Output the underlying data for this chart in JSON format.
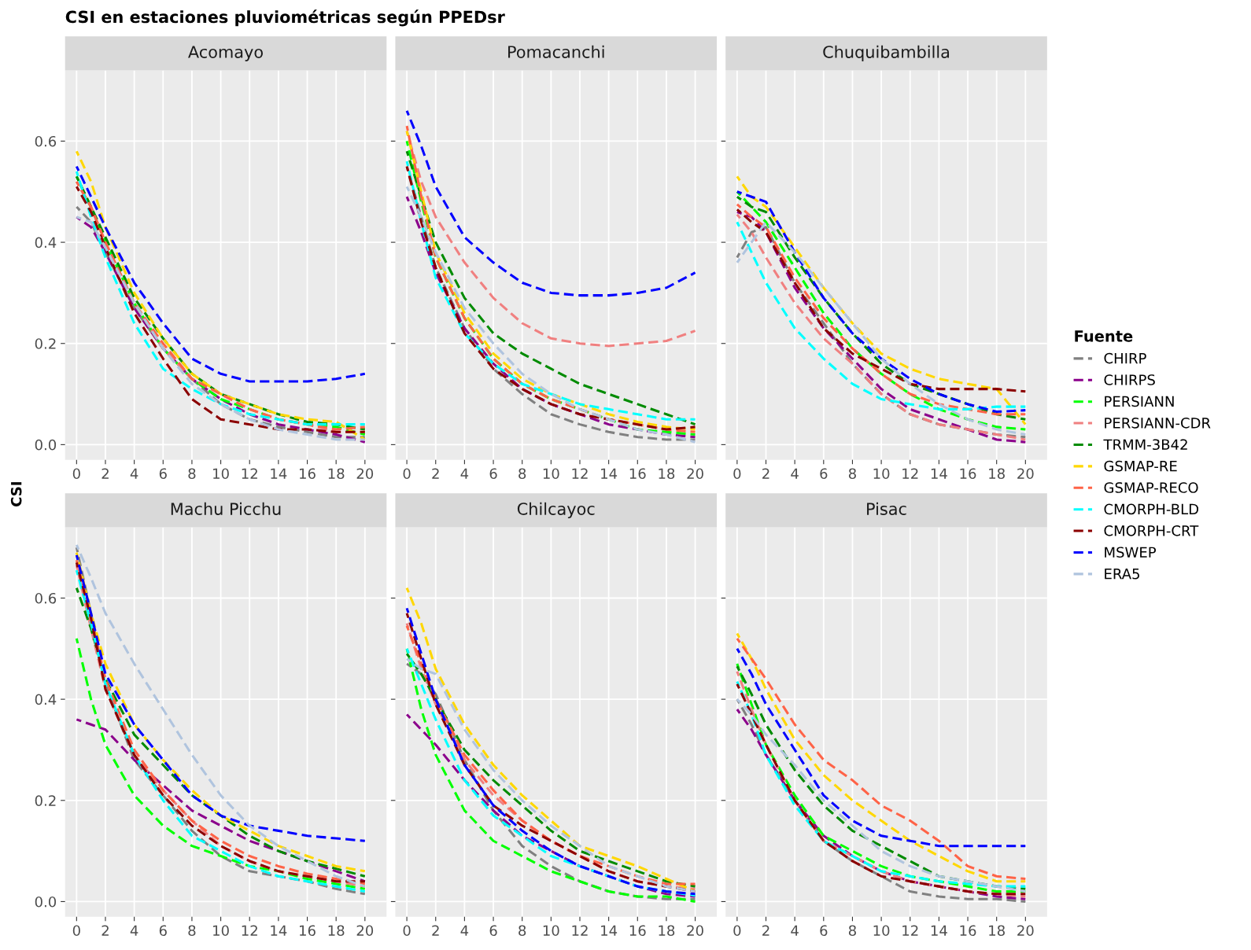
{
  "chart_data": [
    {
      "type": "line",
      "title": "CSI en estaciones pluviométricas según PPEDsr",
      "subtitle": "Acomayo",
      "ylabel": "CSI",
      "legend_title": "Fuente",
      "legend": "right",
      "grid": true,
      "line_style": "dashed",
      "x": [
        0,
        1,
        2,
        4,
        6,
        8,
        10,
        12,
        14,
        16,
        18,
        20
      ],
      "xlim": [
        -0.8,
        21.5
      ],
      "ylim": [
        -0.03,
        0.74
      ],
      "xticks": [
        0,
        2,
        4,
        6,
        8,
        10,
        12,
        14,
        16,
        18,
        20
      ],
      "yticks": [
        {
          "value": 0,
          "label": "0.0"
        },
        {
          "value": 0.2,
          "label": "0.2"
        },
        {
          "value": 0.4,
          "label": "0.4"
        },
        {
          "value": 0.6,
          "label": "0.6"
        }
      ],
      "series": [
        {
          "name": "CHIRP",
          "color": "#808080",
          "values": [
            0.47,
            0.44,
            0.38,
            0.27,
            0.19,
            0.13,
            0.08,
            0.05,
            0.035,
            0.025,
            0.015,
            0.015
          ]
        },
        {
          "name": "CHIRPS",
          "color": "#8b008b",
          "values": [
            0.45,
            0.43,
            0.38,
            0.27,
            0.19,
            0.13,
            0.09,
            0.06,
            0.04,
            0.03,
            0.02,
            0.005
          ]
        },
        {
          "name": "PERSIANN",
          "color": "#00ff00",
          "values": [
            0.53,
            0.47,
            0.4,
            0.28,
            0.19,
            0.13,
            0.09,
            0.07,
            0.05,
            0.04,
            0.035,
            0.02
          ]
        },
        {
          "name": "PERSIANN-CDR",
          "color": "#f08080",
          "values": [
            0.52,
            0.47,
            0.4,
            0.28,
            0.19,
            0.13,
            0.1,
            0.07,
            0.05,
            0.04,
            0.025,
            0.025
          ]
        },
        {
          "name": "TRMM-3B42",
          "color": "#008b00",
          "values": [
            0.53,
            0.47,
            0.41,
            0.29,
            0.21,
            0.14,
            0.1,
            0.08,
            0.06,
            0.045,
            0.04,
            0.03
          ]
        },
        {
          "name": "GSMAP-RE",
          "color": "#ffd700",
          "values": [
            0.58,
            0.52,
            0.43,
            0.3,
            0.21,
            0.14,
            0.1,
            0.08,
            0.06,
            0.05,
            0.045,
            0.01
          ]
        },
        {
          "name": "GSMAP-RECO",
          "color": "#ff6347",
          "values": [
            0.52,
            0.47,
            0.4,
            0.28,
            0.2,
            0.13,
            0.1,
            0.07,
            0.05,
            0.04,
            0.03,
            0.035
          ]
        },
        {
          "name": "CMORPH-BLD",
          "color": "#00ffff",
          "values": [
            0.54,
            0.45,
            0.37,
            0.24,
            0.15,
            0.11,
            0.08,
            0.06,
            0.05,
            0.04,
            0.04,
            0.04
          ]
        },
        {
          "name": "CMORPH-CRT",
          "color": "#8b0000",
          "values": [
            0.51,
            0.46,
            0.39,
            0.26,
            0.17,
            0.09,
            0.05,
            0.04,
            0.03,
            0.03,
            0.025,
            0.025
          ]
        },
        {
          "name": "MSWEP",
          "color": "#0000ff",
          "values": [
            0.55,
            0.49,
            0.43,
            0.32,
            0.24,
            0.17,
            0.14,
            0.125,
            0.125,
            0.125,
            0.13,
            0.14
          ]
        },
        {
          "name": "ERA5",
          "color": "#b0c4de",
          "values": [
            0.45,
            0.44,
            0.39,
            0.28,
            0.19,
            0.12,
            0.08,
            0.05,
            0.03,
            0.02,
            0.01,
            0.01
          ]
        }
      ]
    },
    {
      "type": "line",
      "subtitle": "Pomacanchi",
      "grid": true,
      "line_style": "dashed",
      "tick_labels": "x",
      "x": [
        0,
        1,
        2,
        4,
        6,
        8,
        10,
        12,
        14,
        16,
        18,
        20
      ],
      "xlim": [
        -0.8,
        21.5
      ],
      "ylim": [
        -0.03,
        0.74
      ],
      "xticks": [
        0,
        2,
        4,
        6,
        8,
        10,
        12,
        14,
        16,
        18,
        20
      ],
      "yticks": [
        {
          "value": 0,
          "label": null
        },
        {
          "value": 0.2,
          "label": null
        },
        {
          "value": 0.4,
          "label": null
        },
        {
          "value": 0.6,
          "label": null
        }
      ],
      "series": [
        {
          "color": "#808080",
          "values": [
            0.55,
            0.45,
            0.35,
            0.23,
            0.15,
            0.1,
            0.06,
            0.04,
            0.025,
            0.015,
            0.01,
            0.01
          ]
        },
        {
          "color": "#8b008b",
          "values": [
            0.49,
            0.42,
            0.34,
            0.23,
            0.16,
            0.11,
            0.08,
            0.06,
            0.04,
            0.03,
            0.02,
            0.015
          ]
        },
        {
          "color": "#00ff00",
          "values": [
            0.6,
            0.48,
            0.37,
            0.25,
            0.17,
            0.12,
            0.09,
            0.07,
            0.05,
            0.03,
            0.025,
            0.02
          ]
        },
        {
          "color": "#f08080",
          "values": [
            0.62,
            0.52,
            0.45,
            0.36,
            0.29,
            0.24,
            0.21,
            0.2,
            0.195,
            0.2,
            0.205,
            0.225
          ]
        },
        {
          "color": "#008b00",
          "values": [
            0.58,
            0.49,
            0.4,
            0.29,
            0.22,
            0.18,
            0.15,
            0.12,
            0.1,
            0.08,
            0.06,
            0.04
          ]
        },
        {
          "color": "#ffd700",
          "values": [
            0.62,
            0.5,
            0.38,
            0.26,
            0.18,
            0.13,
            0.1,
            0.08,
            0.06,
            0.045,
            0.035,
            0.03
          ]
        },
        {
          "color": "#ff6347",
          "values": [
            0.63,
            0.49,
            0.37,
            0.25,
            0.17,
            0.12,
            0.09,
            0.07,
            0.05,
            0.04,
            0.03,
            0.025
          ]
        },
        {
          "color": "#00ffff",
          "values": [
            0.56,
            0.44,
            0.33,
            0.22,
            0.16,
            0.12,
            0.1,
            0.08,
            0.07,
            0.06,
            0.05,
            0.05
          ]
        },
        {
          "color": "#8b0000",
          "values": [
            0.55,
            0.44,
            0.35,
            0.22,
            0.15,
            0.11,
            0.08,
            0.06,
            0.05,
            0.04,
            0.03,
            0.035
          ]
        },
        {
          "color": "#0000ff",
          "values": [
            0.66,
            0.59,
            0.51,
            0.41,
            0.36,
            0.32,
            0.3,
            0.295,
            0.295,
            0.3,
            0.31,
            0.34
          ]
        },
        {
          "color": "#b0c4de",
          "values": [
            0.51,
            0.45,
            0.38,
            0.27,
            0.2,
            0.14,
            0.1,
            0.07,
            0.05,
            0.03,
            0.02,
            0.005
          ]
        }
      ]
    },
    {
      "type": "line",
      "subtitle": "Chuquibambilla",
      "grid": true,
      "line_style": "dashed",
      "tick_labels": "x",
      "x": [
        0,
        1,
        2,
        4,
        6,
        8,
        10,
        12,
        14,
        16,
        18,
        20
      ],
      "xlim": [
        -0.8,
        21.5
      ],
      "ylim": [
        -0.03,
        0.74
      ],
      "xticks": [
        0,
        2,
        4,
        6,
        8,
        10,
        12,
        14,
        16,
        18,
        20
      ],
      "yticks": [
        {
          "value": 0,
          "label": null
        },
        {
          "value": 0.2,
          "label": null
        },
        {
          "value": 0.4,
          "label": null
        },
        {
          "value": 0.6,
          "label": null
        }
      ],
      "series": [
        {
          "color": "#808080",
          "values": [
            0.37,
            0.42,
            0.43,
            0.32,
            0.24,
            0.16,
            0.1,
            0.06,
            0.04,
            0.03,
            0.02,
            0.015
          ]
        },
        {
          "color": "#8b008b",
          "values": [
            0.46,
            0.45,
            0.42,
            0.31,
            0.23,
            0.17,
            0.11,
            0.07,
            0.05,
            0.03,
            0.01,
            0.005
          ]
        },
        {
          "color": "#00ff00",
          "values": [
            0.5,
            0.47,
            0.44,
            0.35,
            0.26,
            0.19,
            0.14,
            0.1,
            0.07,
            0.05,
            0.035,
            0.03
          ]
        },
        {
          "color": "#f08080",
          "values": [
            0.455,
            0.42,
            0.37,
            0.28,
            0.21,
            0.16,
            0.1,
            0.06,
            0.04,
            0.03,
            0.02,
            0.01
          ]
        },
        {
          "color": "#008b00",
          "values": [
            0.49,
            0.47,
            0.46,
            0.37,
            0.29,
            0.22,
            0.16,
            0.12,
            0.1,
            0.08,
            0.06,
            0.05
          ]
        },
        {
          "color": "#ffd700",
          "values": [
            0.53,
            0.49,
            0.47,
            0.39,
            0.31,
            0.24,
            0.18,
            0.15,
            0.13,
            0.12,
            0.11,
            0.04
          ]
        },
        {
          "color": "#ff6347",
          "values": [
            0.475,
            0.45,
            0.43,
            0.33,
            0.25,
            0.19,
            0.14,
            0.1,
            0.08,
            0.07,
            0.06,
            0.06
          ]
        },
        {
          "color": "#00ffff",
          "values": [
            0.44,
            0.38,
            0.32,
            0.23,
            0.17,
            0.12,
            0.09,
            0.08,
            0.07,
            0.07,
            0.075,
            0.075
          ]
        },
        {
          "color": "#8b0000",
          "values": [
            0.465,
            0.44,
            0.42,
            0.32,
            0.23,
            0.18,
            0.15,
            0.12,
            0.11,
            0.11,
            0.11,
            0.105
          ]
        },
        {
          "color": "#0000ff",
          "values": [
            0.5,
            0.49,
            0.48,
            0.38,
            0.29,
            0.22,
            0.17,
            0.13,
            0.1,
            0.08,
            0.065,
            0.068
          ]
        },
        {
          "color": "#b0c4de",
          "values": [
            0.36,
            0.4,
            0.44,
            0.38,
            0.31,
            0.24,
            0.17,
            0.12,
            0.08,
            0.05,
            0.03,
            0.02
          ]
        }
      ]
    },
    {
      "type": "line",
      "subtitle": "Machu Picchu",
      "grid": true,
      "line_style": "dashed",
      "x": [
        0,
        1,
        2,
        4,
        6,
        8,
        10,
        12,
        14,
        16,
        18,
        20
      ],
      "xlim": [
        -0.8,
        21.5
      ],
      "ylim": [
        -0.03,
        0.74
      ],
      "xticks": [
        0,
        2,
        4,
        6,
        8,
        10,
        12,
        14,
        16,
        18,
        20
      ],
      "yticks": [
        {
          "value": 0,
          "label": "0.0"
        },
        {
          "value": 0.2,
          "label": "0.2"
        },
        {
          "value": 0.4,
          "label": "0.4"
        },
        {
          "value": 0.6,
          "label": "0.6"
        }
      ],
      "series": [
        {
          "color": "#808080",
          "values": [
            0.7,
            0.57,
            0.43,
            0.28,
            0.21,
            0.14,
            0.09,
            0.06,
            0.05,
            0.04,
            0.025,
            0.015
          ]
        },
        {
          "color": "#8b008b",
          "values": [
            0.36,
            0.35,
            0.34,
            0.28,
            0.23,
            0.18,
            0.15,
            0.12,
            0.1,
            0.08,
            0.06,
            0.04
          ]
        },
        {
          "color": "#00ff00",
          "values": [
            0.52,
            0.4,
            0.31,
            0.21,
            0.15,
            0.11,
            0.09,
            0.07,
            0.06,
            0.045,
            0.035,
            0.025
          ]
        },
        {
          "color": "#f08080",
          "values": [
            0.665,
            0.54,
            0.42,
            0.29,
            0.22,
            0.16,
            0.11,
            0.08,
            0.06,
            0.05,
            0.04,
            0.03
          ]
        },
        {
          "color": "#008b00",
          "values": [
            0.62,
            0.54,
            0.44,
            0.33,
            0.27,
            0.21,
            0.17,
            0.13,
            0.1,
            0.08,
            0.065,
            0.05
          ]
        },
        {
          "color": "#ffd700",
          "values": [
            0.69,
            0.57,
            0.47,
            0.35,
            0.28,
            0.22,
            0.17,
            0.14,
            0.11,
            0.09,
            0.07,
            0.06
          ]
        },
        {
          "color": "#ff6347",
          "values": [
            0.675,
            0.56,
            0.44,
            0.3,
            0.22,
            0.16,
            0.12,
            0.09,
            0.07,
            0.055,
            0.045,
            0.035
          ]
        },
        {
          "color": "#00ffff",
          "values": [
            0.655,
            0.55,
            0.43,
            0.29,
            0.2,
            0.13,
            0.1,
            0.07,
            0.05,
            0.04,
            0.03,
            0.02
          ]
        },
        {
          "color": "#8b0000",
          "values": [
            0.67,
            0.56,
            0.42,
            0.29,
            0.21,
            0.15,
            0.11,
            0.08,
            0.06,
            0.05,
            0.04,
            0.04
          ]
        },
        {
          "color": "#0000ff",
          "values": [
            0.685,
            0.57,
            0.45,
            0.35,
            0.28,
            0.21,
            0.17,
            0.15,
            0.14,
            0.13,
            0.125,
            0.12
          ]
        },
        {
          "color": "#b0c4de",
          "values": [
            0.705,
            0.64,
            0.57,
            0.47,
            0.38,
            0.29,
            0.21,
            0.15,
            0.11,
            0.08,
            0.05,
            0.03
          ]
        }
      ]
    },
    {
      "type": "line",
      "subtitle": "Chilcayoc",
      "grid": true,
      "line_style": "dashed",
      "tick_labels": "x",
      "x": [
        0,
        1,
        2,
        4,
        6,
        8,
        10,
        12,
        14,
        16,
        18,
        20
      ],
      "xlim": [
        -0.8,
        21.5
      ],
      "ylim": [
        -0.03,
        0.74
      ],
      "xticks": [
        0,
        2,
        4,
        6,
        8,
        10,
        12,
        14,
        16,
        18,
        20
      ],
      "yticks": [
        {
          "value": 0,
          "label": null
        },
        {
          "value": 0.2,
          "label": null
        },
        {
          "value": 0.4,
          "label": null
        },
        {
          "value": 0.6,
          "label": null
        }
      ],
      "series": [
        {
          "color": "#808080",
          "values": [
            0.47,
            0.45,
            0.41,
            0.28,
            0.18,
            0.11,
            0.07,
            0.04,
            0.02,
            0.01,
            0.005,
            0.005
          ]
        },
        {
          "color": "#8b008b",
          "values": [
            0.37,
            0.34,
            0.31,
            0.24,
            0.18,
            0.13,
            0.1,
            0.07,
            0.05,
            0.03,
            0.015,
            0.01
          ]
        },
        {
          "color": "#00ff00",
          "values": [
            0.5,
            0.38,
            0.29,
            0.18,
            0.12,
            0.09,
            0.06,
            0.04,
            0.02,
            0.01,
            0.01,
            0.0
          ]
        },
        {
          "color": "#f08080",
          "values": [
            0.55,
            0.46,
            0.39,
            0.28,
            0.21,
            0.16,
            0.12,
            0.09,
            0.06,
            0.04,
            0.03,
            0.025
          ]
        },
        {
          "color": "#008b00",
          "values": [
            0.49,
            0.45,
            0.4,
            0.3,
            0.24,
            0.19,
            0.14,
            0.1,
            0.08,
            0.06,
            0.04,
            0.03
          ]
        },
        {
          "color": "#ffd700",
          "values": [
            0.62,
            0.55,
            0.46,
            0.35,
            0.27,
            0.21,
            0.16,
            0.11,
            0.09,
            0.07,
            0.045,
            0.02
          ]
        },
        {
          "color": "#ff6347",
          "values": [
            0.545,
            0.47,
            0.4,
            0.29,
            0.22,
            0.16,
            0.12,
            0.09,
            0.07,
            0.05,
            0.035,
            0.035
          ]
        },
        {
          "color": "#00ffff",
          "values": [
            0.5,
            0.43,
            0.36,
            0.24,
            0.17,
            0.13,
            0.09,
            0.07,
            0.05,
            0.03,
            0.02,
            0.012
          ]
        },
        {
          "color": "#8b0000",
          "values": [
            0.57,
            0.48,
            0.39,
            0.27,
            0.19,
            0.15,
            0.12,
            0.09,
            0.06,
            0.04,
            0.03,
            0.02
          ]
        },
        {
          "color": "#0000ff",
          "values": [
            0.58,
            0.49,
            0.4,
            0.27,
            0.19,
            0.14,
            0.1,
            0.07,
            0.05,
            0.03,
            0.02,
            0.015
          ]
        },
        {
          "color": "#b0c4de",
          "values": [
            0.48,
            0.46,
            0.45,
            0.34,
            0.26,
            0.2,
            0.15,
            0.11,
            0.07,
            0.05,
            0.03,
            0.02
          ]
        }
      ]
    },
    {
      "type": "line",
      "subtitle": "Pisac",
      "grid": true,
      "line_style": "dashed",
      "tick_labels": "x",
      "x": [
        0,
        1,
        2,
        4,
        6,
        8,
        10,
        12,
        14,
        16,
        18,
        20
      ],
      "xlim": [
        -0.8,
        21.5
      ],
      "ylim": [
        -0.03,
        0.74
      ],
      "xticks": [
        0,
        2,
        4,
        6,
        8,
        10,
        12,
        14,
        16,
        18,
        20
      ],
      "yticks": [
        {
          "value": 0,
          "label": null
        },
        {
          "value": 0.2,
          "label": null
        },
        {
          "value": 0.4,
          "label": null
        },
        {
          "value": 0.6,
          "label": null
        }
      ],
      "series": [
        {
          "color": "#808080",
          "values": [
            0.4,
            0.35,
            0.29,
            0.2,
            0.12,
            0.08,
            0.05,
            0.02,
            0.01,
            0.005,
            0.005,
            0.0
          ]
        },
        {
          "color": "#8b008b",
          "values": [
            0.38,
            0.34,
            0.29,
            0.2,
            0.13,
            0.09,
            0.06,
            0.04,
            0.03,
            0.02,
            0.01,
            0.005
          ]
        },
        {
          "color": "#00ff00",
          "values": [
            0.47,
            0.39,
            0.31,
            0.21,
            0.13,
            0.1,
            0.07,
            0.05,
            0.04,
            0.03,
            0.02,
            0.02
          ]
        },
        {
          "color": "#f08080",
          "values": [
            0.455,
            0.38,
            0.31,
            0.2,
            0.12,
            0.09,
            0.06,
            0.04,
            0.03,
            0.02,
            0.015,
            0.01
          ]
        },
        {
          "color": "#008b00",
          "values": [
            0.465,
            0.41,
            0.35,
            0.26,
            0.19,
            0.14,
            0.11,
            0.08,
            0.05,
            0.04,
            0.03,
            0.025
          ]
        },
        {
          "color": "#ffd700",
          "values": [
            0.53,
            0.48,
            0.42,
            0.32,
            0.25,
            0.2,
            0.16,
            0.12,
            0.09,
            0.06,
            0.04,
            0.04
          ]
        },
        {
          "color": "#ff6347",
          "values": [
            0.52,
            0.48,
            0.44,
            0.35,
            0.28,
            0.24,
            0.19,
            0.16,
            0.12,
            0.07,
            0.05,
            0.045
          ]
        },
        {
          "color": "#00ffff",
          "values": [
            0.435,
            0.37,
            0.29,
            0.19,
            0.12,
            0.09,
            0.06,
            0.05,
            0.04,
            0.035,
            0.03,
            0.03
          ]
        },
        {
          "color": "#8b0000",
          "values": [
            0.43,
            0.37,
            0.31,
            0.2,
            0.12,
            0.08,
            0.05,
            0.04,
            0.03,
            0.02,
            0.015,
            0.015
          ]
        },
        {
          "color": "#0000ff",
          "values": [
            0.5,
            0.45,
            0.39,
            0.3,
            0.21,
            0.16,
            0.13,
            0.12,
            0.11,
            0.11,
            0.11,
            0.11
          ]
        },
        {
          "color": "#b0c4de",
          "values": [
            0.4,
            0.37,
            0.33,
            0.27,
            0.2,
            0.15,
            0.1,
            0.07,
            0.05,
            0.04,
            0.03,
            0.02
          ]
        }
      ]
    }
  ]
}
